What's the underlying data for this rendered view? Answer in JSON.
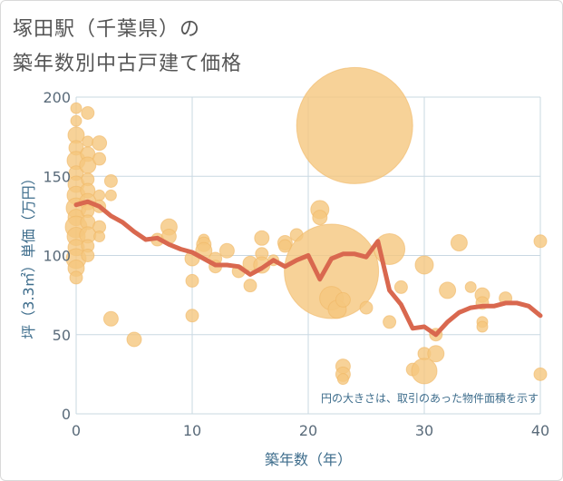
{
  "title_line1": "塚田駅（千葉県）の",
  "title_line2": "築年数別中古戸建て価格",
  "chart_data": {
    "type": "scatter",
    "xlabel": "築年数（年）",
    "ylabel": "坪（3.3㎡）単価（万円）",
    "xlim": [
      0,
      40
    ],
    "ylim": [
      0,
      200
    ],
    "xticks": [
      0,
      10,
      20,
      30,
      40
    ],
    "yticks": [
      0,
      50,
      100,
      150,
      200
    ],
    "grid": true,
    "annotation": "円の大きさは、取引のあった物件面積を示す",
    "colors": {
      "bubble": "#f5c77e",
      "line": "#d9684f",
      "grid": "#c9d8e2"
    },
    "bubbles": [
      {
        "x": 0,
        "y": 193,
        "r": 6
      },
      {
        "x": 0,
        "y": 185,
        "r": 6
      },
      {
        "x": 0,
        "y": 176,
        "r": 9
      },
      {
        "x": 0,
        "y": 168,
        "r": 8
      },
      {
        "x": 0,
        "y": 160,
        "r": 10
      },
      {
        "x": 0,
        "y": 152,
        "r": 8
      },
      {
        "x": 0,
        "y": 145,
        "r": 9
      },
      {
        "x": 0,
        "y": 138,
        "r": 10
      },
      {
        "x": 0,
        "y": 130,
        "r": 11
      },
      {
        "x": 0,
        "y": 124,
        "r": 9
      },
      {
        "x": 0,
        "y": 118,
        "r": 12
      },
      {
        "x": 0,
        "y": 112,
        "r": 10
      },
      {
        "x": 0,
        "y": 105,
        "r": 9
      },
      {
        "x": 0,
        "y": 98,
        "r": 11
      },
      {
        "x": 0,
        "y": 92,
        "r": 9
      },
      {
        "x": 0,
        "y": 86,
        "r": 7
      },
      {
        "x": 1,
        "y": 190,
        "r": 7
      },
      {
        "x": 1,
        "y": 172,
        "r": 6
      },
      {
        "x": 1,
        "y": 164,
        "r": 8
      },
      {
        "x": 1,
        "y": 157,
        "r": 9
      },
      {
        "x": 1,
        "y": 148,
        "r": 7
      },
      {
        "x": 1,
        "y": 141,
        "r": 8
      },
      {
        "x": 1,
        "y": 134,
        "r": 9
      },
      {
        "x": 1,
        "y": 128,
        "r": 7
      },
      {
        "x": 1,
        "y": 121,
        "r": 8
      },
      {
        "x": 1,
        "y": 113,
        "r": 9
      },
      {
        "x": 1,
        "y": 106,
        "r": 7
      },
      {
        "x": 1,
        "y": 100,
        "r": 7
      },
      {
        "x": 2,
        "y": 171,
        "r": 8
      },
      {
        "x": 2,
        "y": 161,
        "r": 7
      },
      {
        "x": 2,
        "y": 138,
        "r": 6
      },
      {
        "x": 2,
        "y": 131,
        "r": 7
      },
      {
        "x": 2,
        "y": 118,
        "r": 7
      },
      {
        "x": 2,
        "y": 112,
        "r": 6
      },
      {
        "x": 3,
        "y": 147,
        "r": 7
      },
      {
        "x": 3,
        "y": 138,
        "r": 6
      },
      {
        "x": 3,
        "y": 60,
        "r": 8
      },
      {
        "x": 5,
        "y": 47,
        "r": 8
      },
      {
        "x": 7,
        "y": 110,
        "r": 7
      },
      {
        "x": 8,
        "y": 118,
        "r": 9
      },
      {
        "x": 8,
        "y": 112,
        "r": 8
      },
      {
        "x": 10,
        "y": 98,
        "r": 8
      },
      {
        "x": 10,
        "y": 84,
        "r": 7
      },
      {
        "x": 10,
        "y": 62,
        "r": 7
      },
      {
        "x": 11,
        "y": 110,
        "r": 6
      },
      {
        "x": 11,
        "y": 107,
        "r": 8
      },
      {
        "x": 11,
        "y": 103,
        "r": 9
      },
      {
        "x": 12,
        "y": 98,
        "r": 7
      },
      {
        "x": 12,
        "y": 93,
        "r": 7
      },
      {
        "x": 13,
        "y": 103,
        "r": 8
      },
      {
        "x": 14,
        "y": 90,
        "r": 7
      },
      {
        "x": 15,
        "y": 95,
        "r": 8
      },
      {
        "x": 15,
        "y": 81,
        "r": 7
      },
      {
        "x": 16,
        "y": 111,
        "r": 8
      },
      {
        "x": 16,
        "y": 101,
        "r": 7
      },
      {
        "x": 16,
        "y": 94,
        "r": 9
      },
      {
        "x": 17,
        "y": 97,
        "r": 6
      },
      {
        "x": 18,
        "y": 108,
        "r": 8
      },
      {
        "x": 18,
        "y": 106,
        "r": 7
      },
      {
        "x": 19,
        "y": 113,
        "r": 7
      },
      {
        "x": 21,
        "y": 129,
        "r": 10
      },
      {
        "x": 21,
        "y": 124,
        "r": 8
      },
      {
        "x": 22,
        "y": 90,
        "r": 52
      },
      {
        "x": 22,
        "y": 73,
        "r": 13
      },
      {
        "x": 22.5,
        "y": 66,
        "r": 10
      },
      {
        "x": 23,
        "y": 72,
        "r": 8
      },
      {
        "x": 24,
        "y": 182,
        "r": 64
      },
      {
        "x": 25,
        "y": 67,
        "r": 7
      },
      {
        "x": 27,
        "y": 104,
        "r": 17
      },
      {
        "x": 27,
        "y": 58,
        "r": 7
      },
      {
        "x": 28,
        "y": 80,
        "r": 7
      },
      {
        "x": 23,
        "y": 30,
        "r": 8
      },
      {
        "x": 23,
        "y": 25,
        "r": 8
      },
      {
        "x": 23,
        "y": 22,
        "r": 6
      },
      {
        "x": 29,
        "y": 28,
        "r": 7
      },
      {
        "x": 30,
        "y": 94,
        "r": 10
      },
      {
        "x": 30,
        "y": 38,
        "r": 7
      },
      {
        "x": 30,
        "y": 27,
        "r": 14
      },
      {
        "x": 31,
        "y": 38,
        "r": 9
      },
      {
        "x": 31,
        "y": 50,
        "r": 7
      },
      {
        "x": 32,
        "y": 78,
        "r": 9
      },
      {
        "x": 33,
        "y": 108,
        "r": 9
      },
      {
        "x": 34,
        "y": 80,
        "r": 6
      },
      {
        "x": 35,
        "y": 75,
        "r": 8
      },
      {
        "x": 35,
        "y": 70,
        "r": 7
      },
      {
        "x": 35,
        "y": 58,
        "r": 6
      },
      {
        "x": 35,
        "y": 55,
        "r": 6
      },
      {
        "x": 37,
        "y": 73,
        "r": 7
      },
      {
        "x": 40,
        "y": 109,
        "r": 7
      },
      {
        "x": 40,
        "y": 25,
        "r": 7
      }
    ],
    "trend": {
      "x": [
        0,
        1,
        2,
        3,
        4,
        5,
        6,
        7,
        8,
        9,
        10,
        11,
        12,
        13,
        14,
        15,
        16,
        17,
        18,
        19,
        20,
        21,
        22,
        23,
        24,
        25,
        26,
        27,
        28,
        29,
        30,
        31,
        32,
        33,
        34,
        35,
        36,
        37,
        38,
        39,
        40
      ],
      "y": [
        132,
        134,
        131,
        125,
        121,
        115,
        110,
        111,
        107,
        104,
        102,
        98,
        94,
        94,
        93,
        88,
        92,
        97,
        93,
        97,
        100,
        85,
        98,
        101,
        101,
        99,
        109,
        78,
        69,
        54,
        55,
        50,
        58,
        64,
        67,
        68,
        68,
        70,
        70,
        68,
        62
      ]
    }
  }
}
